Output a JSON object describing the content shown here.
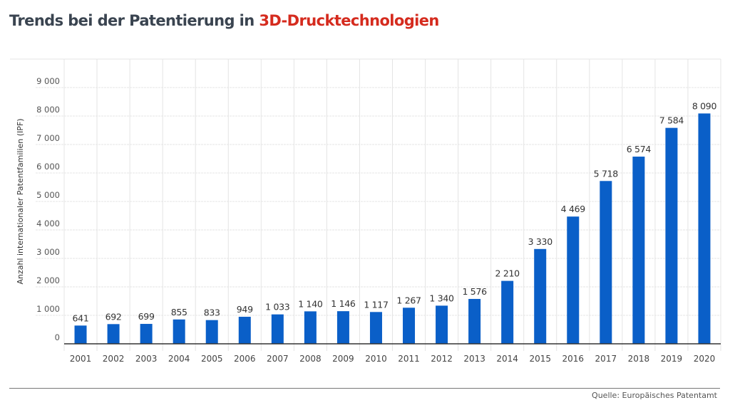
{
  "title": {
    "part1": "Trends bei der Patentierung in ",
    "part2": "3D-Drucktechnologien"
  },
  "source": "Quelle: Europäisches Patentamt",
  "colors": {
    "bar": "#0a5fc8",
    "title_accent": "#d52b1e",
    "title": "#3a4450"
  },
  "chart_data": {
    "type": "bar",
    "title": "Trends bei der Patentierung in 3D-Drucktechnologien",
    "ylabel": "Anzahl internationaler Patentfamilien (IPF)",
    "xlabel": "",
    "categories": [
      "2001",
      "2002",
      "2003",
      "2004",
      "2005",
      "2006",
      "2007",
      "2008",
      "2009",
      "2010",
      "2011",
      "2012",
      "2013",
      "2014",
      "2015",
      "2016",
      "2017",
      "2018",
      "2019",
      "2020"
    ],
    "values": [
      641,
      692,
      699,
      855,
      833,
      949,
      1033,
      1140,
      1146,
      1117,
      1267,
      1340,
      1576,
      2210,
      3330,
      4469,
      5718,
      6574,
      7584,
      8090
    ],
    "data_labels": [
      "641",
      "692",
      "699",
      "855",
      "833",
      "949",
      "1 033",
      "1 140",
      "1 146",
      "1 117",
      "1 267",
      "1 340",
      "1 576",
      "2 210",
      "3 330",
      "4 469",
      "5 718",
      "6 574",
      "7 584",
      "8 090"
    ],
    "yticks": [
      0,
      1000,
      2000,
      3000,
      4000,
      5000,
      6000,
      7000,
      8000,
      9000
    ],
    "ytick_labels": [
      "0",
      "1 000",
      "2 000",
      "3 000",
      "4 000",
      "5 000",
      "6 000",
      "7 000",
      "8 000",
      "9 000"
    ],
    "ylim": [
      0,
      10000
    ],
    "grid": true,
    "legend": "none"
  }
}
